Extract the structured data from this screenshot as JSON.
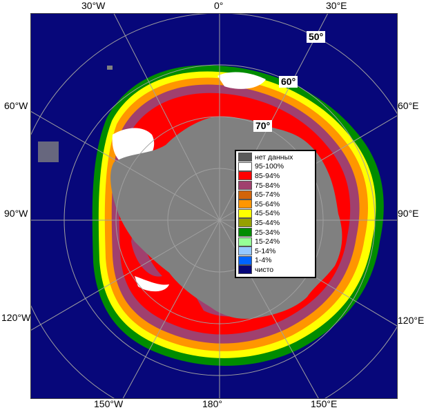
{
  "map": {
    "longitude_labels": [
      {
        "id": "30w",
        "text": "30°W"
      },
      {
        "id": "0",
        "text": "0°"
      },
      {
        "id": "30e-top",
        "text": "30°E"
      },
      {
        "id": "60w",
        "text": "60°W"
      },
      {
        "id": "60e",
        "text": "60°E"
      },
      {
        "id": "90w",
        "text": "90°W"
      },
      {
        "id": "90e",
        "text": "90°E"
      },
      {
        "id": "120w",
        "text": "120°W"
      },
      {
        "id": "120e",
        "text": "120°E"
      },
      {
        "id": "150w",
        "text": "150°W"
      },
      {
        "id": "180",
        "text": "180°"
      },
      {
        "id": "150e",
        "text": "150°E"
      }
    ],
    "latitude_labels": [
      {
        "id": "50",
        "text": "50°"
      },
      {
        "id": "60",
        "text": "60°"
      },
      {
        "id": "70",
        "text": "70°"
      }
    ],
    "colors": {
      "ocean": "#07077a",
      "land": "#808080",
      "no_data": "#5a5a5a",
      "grid": "#a0a0a0"
    }
  },
  "legend": {
    "items": [
      {
        "label": "нет данных",
        "color": "#5a5a5a"
      },
      {
        "label": "95-100%",
        "color": "#ffffff"
      },
      {
        "label": "85-94%",
        "color": "#ff0000"
      },
      {
        "label": "75-84%",
        "color": "#a0406e"
      },
      {
        "label": "65-74%",
        "color": "#d2640a"
      },
      {
        "label": "55-64%",
        "color": "#ff9600"
      },
      {
        "label": "45-54%",
        "color": "#ffff00"
      },
      {
        "label": "35-44%",
        "color": "#96a000"
      },
      {
        "label": "25-34%",
        "color": "#008c00"
      },
      {
        "label": "15-24%",
        "color": "#96ff96"
      },
      {
        "label": "5-14%",
        "color": "#96c8ff"
      },
      {
        "label": "1-4%",
        "color": "#0064ff"
      },
      {
        "label": "чисто",
        "color": "#07077a"
      }
    ]
  }
}
